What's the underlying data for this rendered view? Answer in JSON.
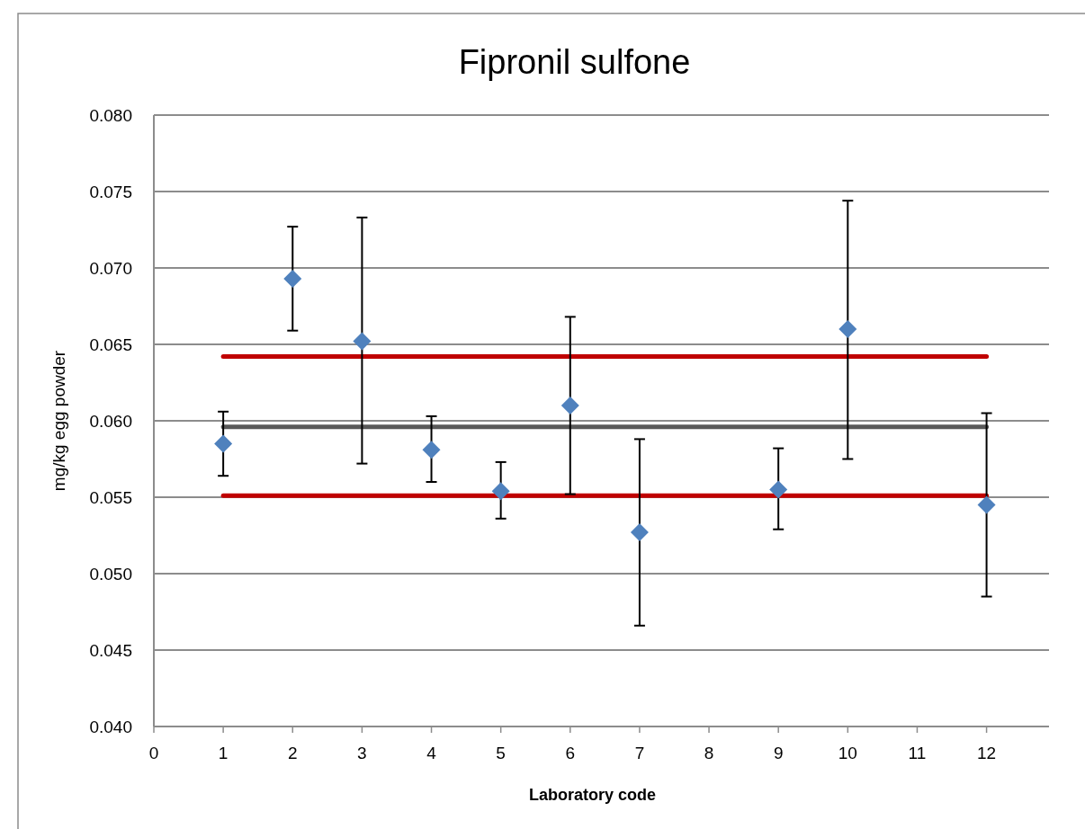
{
  "chart_data": {
    "type": "scatter",
    "title": "Fipronil sulfone",
    "xlabel": "Laboratory code",
    "ylabel": "mg/kg egg powder",
    "xlim": [
      0,
      12.9
    ],
    "xticks": [
      0,
      1,
      2,
      3,
      4,
      5,
      6,
      7,
      8,
      9,
      10,
      11,
      12
    ],
    "ylim": [
      0.04,
      0.08
    ],
    "yticks": [
      {
        "value": 0.04,
        "label": "0.040"
      },
      {
        "value": 0.045,
        "label": "0.045"
      },
      {
        "value": 0.05,
        "label": "0.050"
      },
      {
        "value": 0.055,
        "label": "0.055"
      },
      {
        "value": 0.06,
        "label": "0.060"
      },
      {
        "value": 0.065,
        "label": "0.065"
      },
      {
        "value": 0.07,
        "label": "0.070"
      },
      {
        "value": 0.075,
        "label": "0.075"
      },
      {
        "value": 0.08,
        "label": "0.080"
      }
    ],
    "grid": "y",
    "series": [
      {
        "type": "line",
        "color": "#c00000",
        "x": [
          1,
          12
        ],
        "values": [
          0.0642,
          0.0642
        ]
      },
      {
        "type": "line",
        "color": "#c00000",
        "x": [
          1,
          12
        ],
        "values": [
          0.0551,
          0.0551
        ]
      },
      {
        "type": "line",
        "color": "#595959",
        "x": [
          1,
          12
        ],
        "values": [
          0.0596,
          0.0596
        ]
      },
      {
        "color": "#4f81bd",
        "marker": "diamond",
        "x": [
          1,
          2,
          3,
          4,
          5,
          6,
          7,
          9,
          10,
          12
        ],
        "values": [
          0.0585,
          0.0693,
          0.0652,
          0.0581,
          0.0554,
          0.061,
          0.0527,
          0.0555,
          0.066,
          0.0545
        ],
        "errors": [
          [
            0.0564,
            0.0606
          ],
          [
            0.0659,
            0.0727
          ],
          [
            0.0572,
            0.0733
          ],
          [
            0.056,
            0.0603
          ],
          [
            0.0536,
            0.0573
          ],
          [
            0.0552,
            0.0668
          ],
          [
            0.0466,
            0.0588
          ],
          [
            0.0529,
            0.0582
          ],
          [
            0.0575,
            0.0744
          ],
          [
            0.0485,
            0.0605
          ]
        ]
      }
    ]
  }
}
